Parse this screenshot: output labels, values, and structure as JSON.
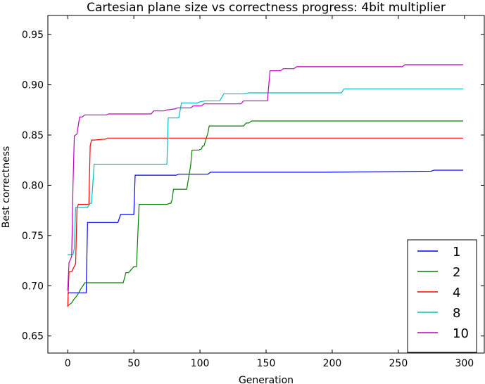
{
  "chart_data": {
    "type": "line",
    "title": "Cartesian plane size vs correctness progress: 4bit multiplier",
    "xlabel": "Generation",
    "ylabel": "Best correctness",
    "xlim": [
      -15,
      315
    ],
    "ylim": [
      0.633,
      0.969
    ],
    "xticks": [
      0,
      50,
      100,
      150,
      200,
      250,
      300
    ],
    "xtick_labels": [
      "0",
      "50",
      "100",
      "150",
      "200",
      "250",
      "300"
    ],
    "yticks": [
      0.65,
      0.7,
      0.75,
      0.8,
      0.85,
      0.9,
      0.95
    ],
    "ytick_labels": [
      "0.65",
      "0.70",
      "0.75",
      "0.80",
      "0.85",
      "0.90",
      "0.95"
    ],
    "grid": false,
    "legend_position": "bottom-right",
    "series": [
      {
        "name": "1",
        "color": "#0000ff",
        "x": [
          0,
          1,
          14,
          15,
          38,
          40,
          50,
          51,
          82,
          84,
          106,
          108,
          195,
          275,
          277,
          299
        ],
        "y": [
          0.692,
          0.693,
          0.693,
          0.763,
          0.763,
          0.771,
          0.771,
          0.81,
          0.81,
          0.811,
          0.811,
          0.813,
          0.813,
          0.814,
          0.815,
          0.815
        ]
      },
      {
        "name": "2",
        "color": "#008000",
        "x": [
          0,
          1,
          3,
          5,
          7,
          10,
          13,
          15,
          42,
          44,
          46,
          48,
          50,
          52,
          54,
          75,
          77,
          78,
          79,
          80,
          90,
          91,
          92,
          93,
          94,
          99,
          101,
          102,
          103,
          106,
          107,
          133,
          135,
          137,
          138,
          139,
          299
        ],
        "y": [
          0.68,
          0.681,
          0.683,
          0.687,
          0.69,
          0.697,
          0.703,
          0.703,
          0.703,
          0.713,
          0.713,
          0.716,
          0.719,
          0.719,
          0.781,
          0.781,
          0.782,
          0.782,
          0.786,
          0.796,
          0.796,
          0.804,
          0.812,
          0.82,
          0.835,
          0.835,
          0.836,
          0.839,
          0.839,
          0.852,
          0.859,
          0.859,
          0.862,
          0.862,
          0.863,
          0.864,
          0.864
        ]
      },
      {
        "name": "4",
        "color": "#ff0000",
        "x": [
          0,
          1,
          3,
          6,
          7,
          8,
          16,
          17,
          18,
          20,
          29,
          30,
          299
        ],
        "y": [
          0.679,
          0.714,
          0.714,
          0.722,
          0.776,
          0.781,
          0.781,
          0.839,
          0.845,
          0.845,
          0.846,
          0.847,
          0.847
        ]
      },
      {
        "name": "8",
        "color": "#00bfbf",
        "x": [
          0,
          4,
          5,
          6,
          15,
          17,
          18,
          20,
          75,
          76,
          84,
          86,
          98,
          100,
          104,
          108,
          115,
          118,
          133,
          137,
          207,
          209,
          299
        ],
        "y": [
          0.731,
          0.731,
          0.737,
          0.778,
          0.778,
          0.782,
          0.782,
          0.821,
          0.821,
          0.867,
          0.867,
          0.882,
          0.882,
          0.883,
          0.884,
          0.884,
          0.884,
          0.891,
          0.891,
          0.892,
          0.892,
          0.896,
          0.896
        ]
      },
      {
        "name": "10",
        "color": "#bf00bf",
        "x": [
          0,
          1,
          3,
          4,
          5,
          7,
          9,
          11,
          13,
          29,
          31,
          63,
          65,
          73,
          75,
          81,
          83,
          93,
          95,
          101,
          103,
          131,
          133,
          151,
          153,
          161,
          163,
          171,
          173,
          253,
          255,
          299
        ],
        "y": [
          0.695,
          0.723,
          0.729,
          0.8,
          0.849,
          0.851,
          0.868,
          0.868,
          0.87,
          0.87,
          0.871,
          0.871,
          0.874,
          0.874,
          0.875,
          0.876,
          0.877,
          0.877,
          0.879,
          0.879,
          0.881,
          0.881,
          0.884,
          0.884,
          0.914,
          0.914,
          0.916,
          0.916,
          0.918,
          0.918,
          0.92,
          0.92
        ]
      }
    ]
  }
}
